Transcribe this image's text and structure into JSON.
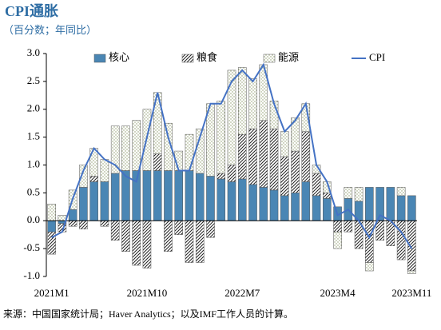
{
  "chart_data": {
    "type": "bar",
    "title": "CPI通胀",
    "subtitle": "（百分数；年同比）",
    "source": "来源：中国国家统计局；Haver Analytics；以及IMF工作人员的计算。",
    "categories": [
      "2021M1",
      null,
      null,
      null,
      null,
      null,
      null,
      null,
      null,
      "2021M10",
      null,
      null,
      null,
      null,
      null,
      null,
      null,
      null,
      "2022M7",
      null,
      null,
      null,
      null,
      null,
      null,
      null,
      null,
      "2023M4",
      null,
      null,
      null,
      null,
      null,
      null,
      "2023M11"
    ],
    "series": [
      {
        "name": "核心",
        "color": "#4a86b4",
        "values": [
          -0.2,
          -0.05,
          0.2,
          0.6,
          0.7,
          0.7,
          0.85,
          0.9,
          0.9,
          0.9,
          0.9,
          0.9,
          0.9,
          0.9,
          0.85,
          0.8,
          0.75,
          0.7,
          0.75,
          0.65,
          0.6,
          0.55,
          0.45,
          0.5,
          0.7,
          0.45,
          0.4,
          0.25,
          0.4,
          0.35,
          0.6,
          0.6,
          0.6,
          0.45,
          0.45
        ]
      },
      {
        "name": "粮食",
        "color": "#222222",
        "values": [
          -0.4,
          -0.15,
          -0.1,
          -0.15,
          0.1,
          -0.1,
          -0.35,
          -0.55,
          -0.8,
          -0.85,
          0.3,
          -0.55,
          -0.25,
          -0.75,
          -0.75,
          -0.3,
          0.1,
          0.3,
          0.8,
          1.0,
          1.2,
          1.1,
          0.7,
          0.75,
          0.9,
          0.4,
          0.1,
          -0.2,
          -0.2,
          -0.5,
          -0.75,
          -0.35,
          -0.45,
          -0.7,
          -0.9
        ]
      },
      {
        "name": "能源",
        "color": "#8c9a6a",
        "values": [
          0.3,
          0.1,
          0.35,
          0.4,
          0.5,
          0.4,
          0.85,
          0.8,
          0.9,
          1.1,
          1.1,
          0.85,
          0.35,
          0.65,
          0.8,
          1.3,
          1.3,
          1.7,
          1.2,
          0.9,
          1.0,
          0.5,
          0.45,
          0.6,
          0.5,
          0.15,
          0.2,
          -0.3,
          0.2,
          0.25,
          -0.15,
          0.0,
          0.0,
          0.15,
          -0.05
        ]
      },
      {
        "name": "CPI",
        "type": "line",
        "color": "#4472c4",
        "values": [
          -0.3,
          -0.2,
          0.4,
          0.9,
          1.3,
          1.1,
          1.0,
          0.8,
          0.7,
          1.5,
          2.3,
          1.5,
          0.9,
          0.9,
          1.5,
          2.1,
          2.1,
          2.5,
          2.7,
          2.5,
          2.8,
          2.1,
          1.6,
          1.8,
          2.1,
          1.0,
          0.7,
          0.1,
          0.2,
          0.0,
          -0.3,
          0.1,
          0.0,
          -0.2,
          -0.5
        ]
      }
    ],
    "ylim": [
      -1,
      3
    ],
    "yticks": [
      {
        "value": -1,
        "label": "-1.0"
      },
      {
        "value": -0.5,
        "label": "-0.5"
      },
      {
        "value": 0,
        "label": "0.0"
      },
      {
        "value": 0.5,
        "label": "0.5"
      },
      {
        "value": 1,
        "label": "1.0"
      },
      {
        "value": 1.5,
        "label": "1.5"
      },
      {
        "value": 2,
        "label": "2.0"
      },
      {
        "value": 2.5,
        "label": "2.5"
      },
      {
        "value": 3,
        "label": "3.0"
      }
    ],
    "legend": "top"
  }
}
